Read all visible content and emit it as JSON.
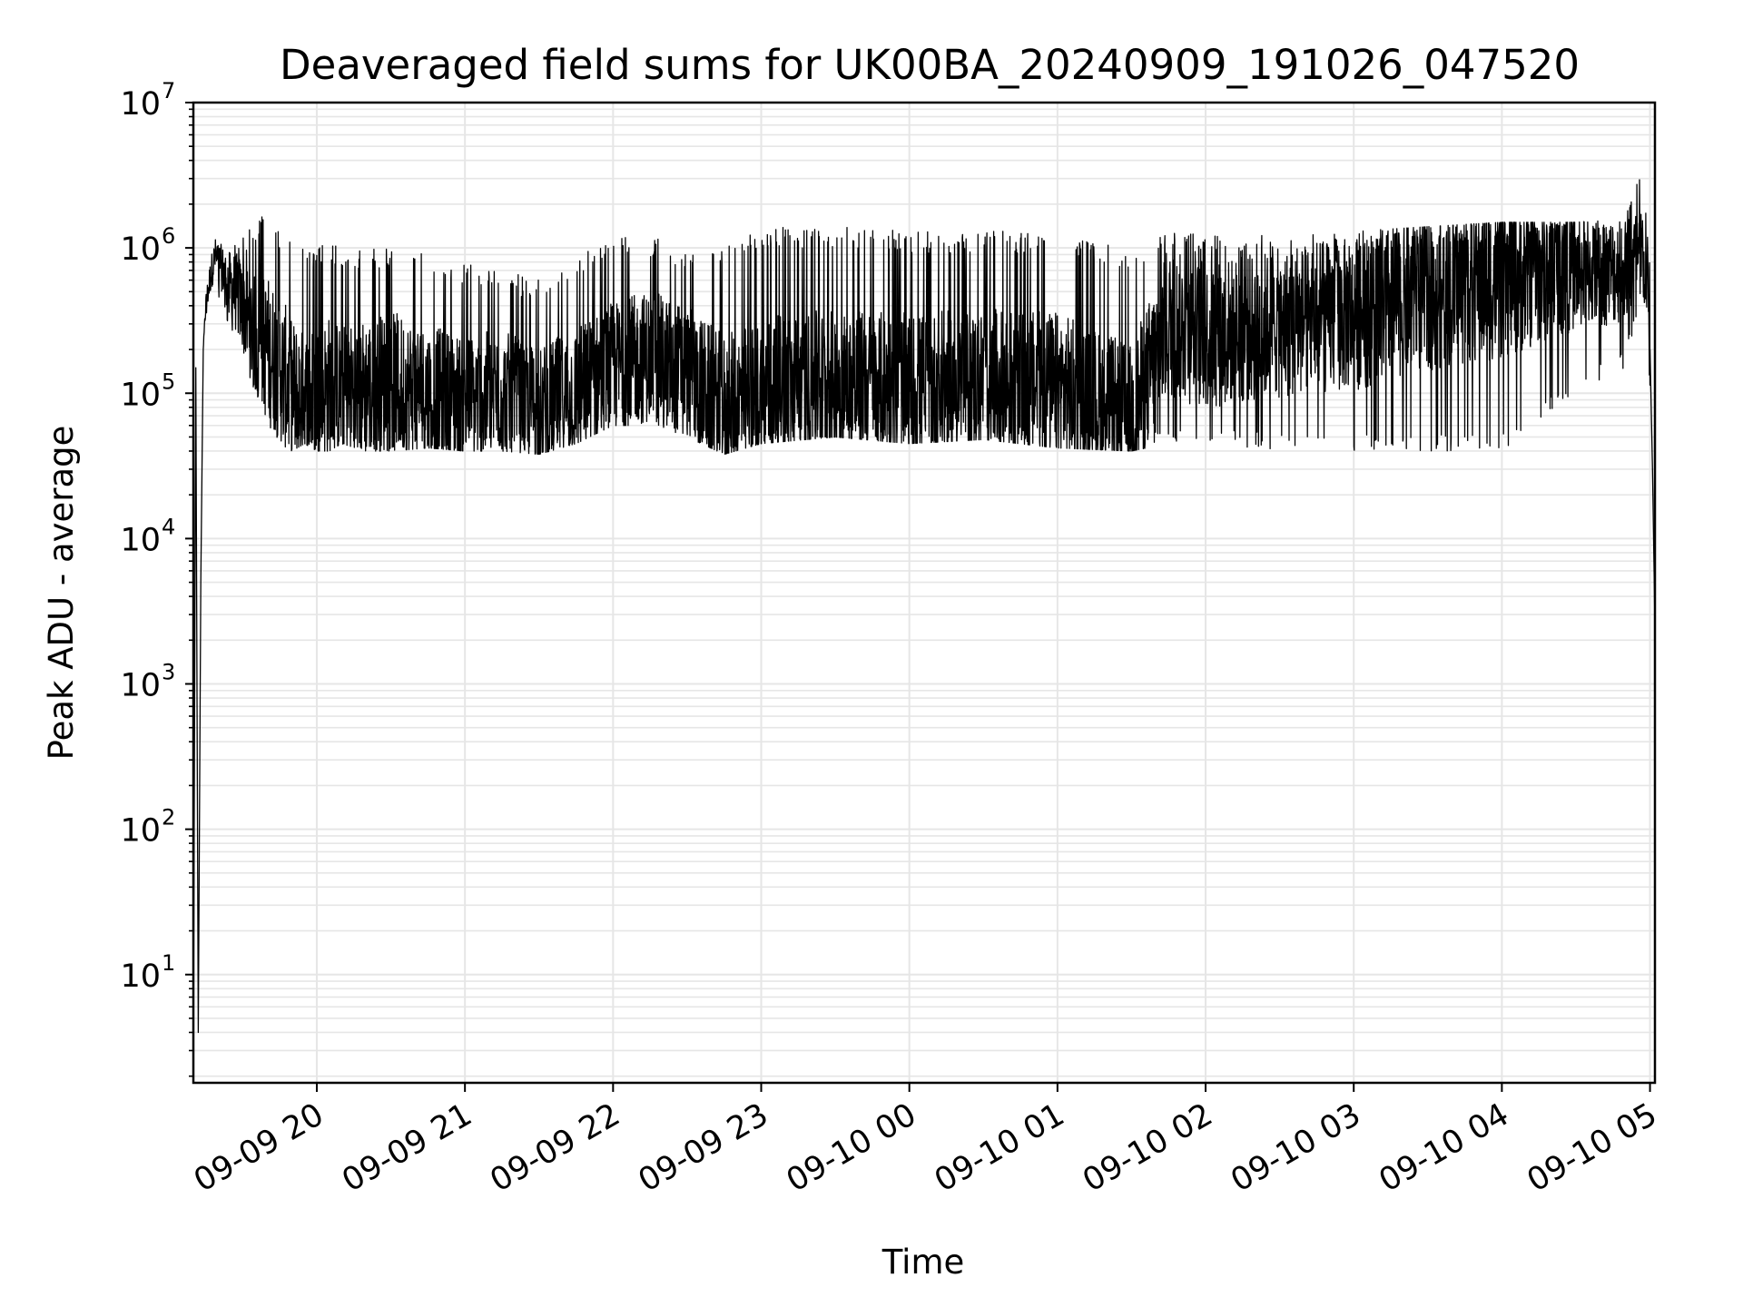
{
  "chart_data": {
    "type": "line",
    "title": "Deaveraged field sums for UK00BA_20240909_191026_047520",
    "xlabel": "Time",
    "ylabel": "Peak ADU - average",
    "yscale": "log",
    "grid": true,
    "colors": {
      "line": "#000000",
      "grid": "#e6e6e6",
      "axes": "#000000"
    },
    "xlim": [
      "2024-09-09 19:10",
      "2024-09-10 05:02"
    ],
    "ylim": [
      1.8,
      10000000
    ],
    "x_ticks": [
      {
        "t": "2024-09-09 20:00",
        "label": "09-09 20"
      },
      {
        "t": "2024-09-09 21:00",
        "label": "09-09 21"
      },
      {
        "t": "2024-09-09 22:00",
        "label": "09-09 22"
      },
      {
        "t": "2024-09-09 23:00",
        "label": "09-09 23"
      },
      {
        "t": "2024-09-10 00:00",
        "label": "09-10 00"
      },
      {
        "t": "2024-09-10 01:00",
        "label": "09-10 01"
      },
      {
        "t": "2024-09-10 02:00",
        "label": "09-10 02"
      },
      {
        "t": "2024-09-10 03:00",
        "label": "09-10 03"
      },
      {
        "t": "2024-09-10 04:00",
        "label": "09-10 04"
      },
      {
        "t": "2024-09-10 05:00",
        "label": "09-10 05"
      }
    ],
    "y_ticks": [
      {
        "value": 10,
        "base": "10",
        "exp": "1"
      },
      {
        "value": 100,
        "base": "10",
        "exp": "2"
      },
      {
        "value": 1000,
        "base": "10",
        "exp": "3"
      },
      {
        "value": 10000,
        "base": "10",
        "exp": "4"
      },
      {
        "value": 100000,
        "base": "10",
        "exp": "5"
      },
      {
        "value": 1000000,
        "base": "10",
        "exp": "6"
      },
      {
        "value": 10000000,
        "base": "10",
        "exp": "7"
      }
    ],
    "series": [
      {
        "x": [
          "2024-09-09 19:10",
          "2024-09-09 19:11",
          "2024-09-09 19:12",
          "2024-09-09 19:13",
          "2024-09-09 19:14",
          "2024-09-09 19:15",
          "2024-09-09 19:17",
          "2024-09-09 19:19",
          "2024-09-09 19:21",
          "2024-09-09 19:24",
          "2024-09-09 19:27",
          "2024-09-09 19:30",
          "2024-09-09 19:35",
          "2024-09-09 19:40",
          "2024-09-09 19:45",
          "2024-09-09 19:50",
          "2024-09-09 19:55",
          "2024-09-09 20:00",
          "2024-09-09 20:05",
          "2024-09-09 20:10",
          "2024-09-09 20:20",
          "2024-09-09 20:30",
          "2024-09-09 20:45",
          "2024-09-09 21:00",
          "2024-09-09 21:15",
          "2024-09-09 21:30",
          "2024-09-09 21:45",
          "2024-09-09 22:00",
          "2024-09-09 22:15",
          "2024-09-09 22:30",
          "2024-09-09 22:45",
          "2024-09-09 23:00",
          "2024-09-09 23:30",
          "2024-09-10 00:00",
          "2024-09-10 00:30",
          "2024-09-10 01:00",
          "2024-09-10 01:30",
          "2024-09-10 01:45",
          "2024-09-10 02:00",
          "2024-09-10 02:30",
          "2024-09-10 03:00",
          "2024-09-10 03:30",
          "2024-09-10 04:00",
          "2024-09-10 04:30",
          "2024-09-10 04:50",
          "2024-09-10 04:57",
          "2024-09-10 04:59",
          "2024-09-10 05:00",
          "2024-09-10 05:01",
          "2024-09-10 05:02"
        ],
        "y": [
          3,
          150000,
          4,
          5000,
          200000,
          400000,
          650000,
          900000,
          750000,
          600000,
          500000,
          400000,
          250000,
          200000,
          150000,
          100000,
          90000,
          100000,
          110000,
          100000,
          110000,
          120000,
          100000,
          90000,
          100000,
          80000,
          100000,
          150000,
          180000,
          140000,
          80000,
          100000,
          120000,
          110000,
          120000,
          110000,
          70000,
          300000,
          250000,
          300000,
          350000,
          500000,
          600000,
          700000,
          700000,
          900000,
          600000,
          200000,
          30000,
          2500
        ],
        "noise_band": {
          "low": [
            3,
            150000,
            4,
            5000,
            200000,
            300000,
            400000,
            500000,
            400000,
            300000,
            200000,
            150000,
            100000,
            60000,
            45000,
            40000,
            45000,
            40000,
            40000,
            45000,
            40000,
            40000,
            42000,
            40000,
            40000,
            38000,
            45000,
            60000,
            60000,
            50000,
            38000,
            45000,
            50000,
            45000,
            48000,
            42000,
            40000,
            45000,
            45000,
            40000,
            40000,
            40000,
            40000,
            100000,
            150000,
            500000,
            200000,
            100000,
            30000,
            2500
          ],
          "high": [
            3,
            150000,
            4,
            5000,
            200000,
            500000,
            900000,
            1150000,
            1100000,
            1100000,
            1200000,
            1300000,
            1500000,
            1800000,
            1300000,
            1200000,
            1000000,
            1000000,
            1100000,
            1000000,
            1000000,
            1000000,
            900000,
            800000,
            700000,
            600000,
            900000,
            1200000,
            1200000,
            1000000,
            1000000,
            1400000,
            1400000,
            1300000,
            1300000,
            1300000,
            1000000,
            1300000,
            1300000,
            1200000,
            1300000,
            1400000,
            1500000,
            1500000,
            1600000,
            5000000,
            1500000,
            1000000,
            30000,
            2500
          ]
        }
      }
    ]
  }
}
